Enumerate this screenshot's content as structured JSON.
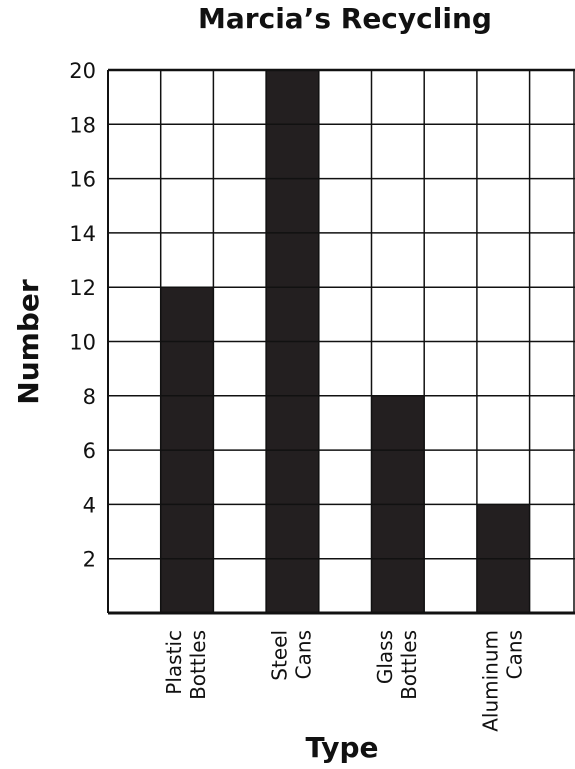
{
  "chart_data": {
    "type": "bar",
    "title": "Marcia’s Recycling",
    "xlabel": "Type",
    "ylabel": "Number",
    "categories": [
      [
        "Plastic",
        "Bottles"
      ],
      [
        "Steel",
        "Cans"
      ],
      [
        "Glass",
        "Bottles"
      ],
      [
        "Aluminum",
        "Cans"
      ]
    ],
    "values": [
      12,
      20,
      8,
      4
    ],
    "y_ticks": [
      2,
      4,
      6,
      8,
      10,
      12,
      14,
      16,
      18,
      20
    ],
    "ylim": [
      0,
      20
    ],
    "grid": true,
    "bar_color": "#231f20"
  }
}
